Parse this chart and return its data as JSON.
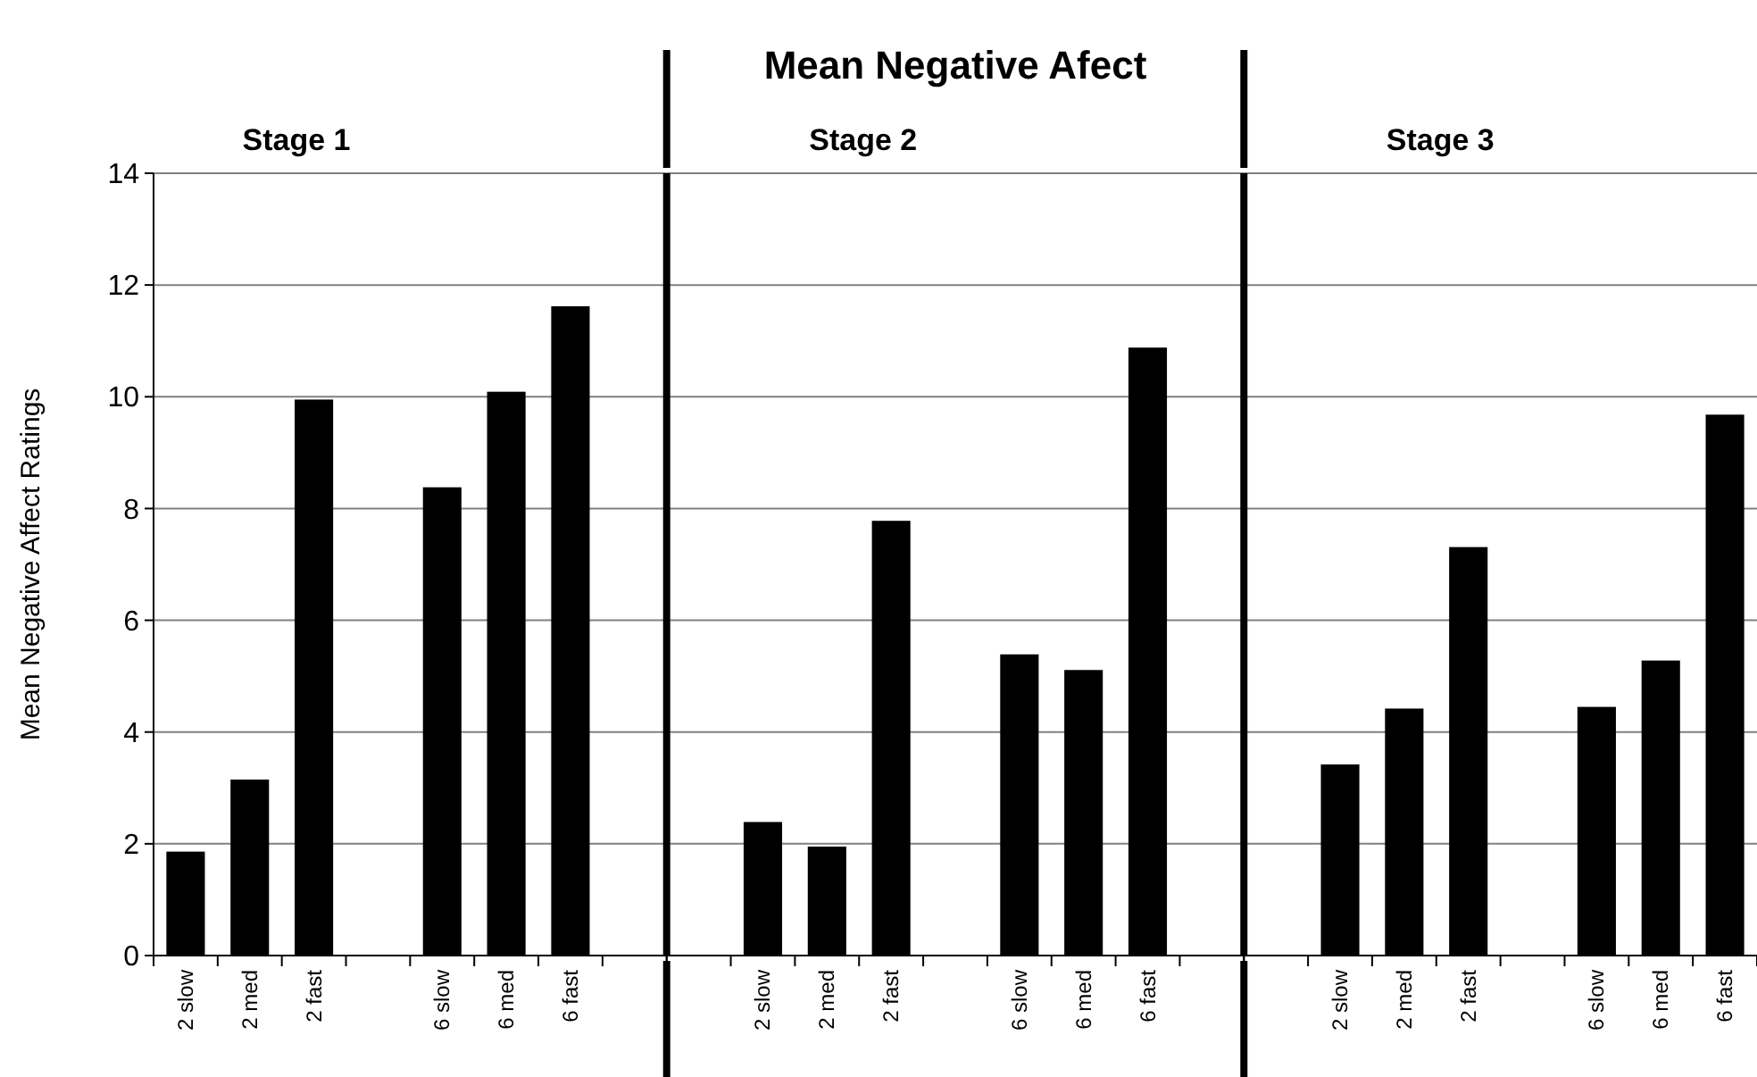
{
  "chart_data": [
    {
      "type": "bar",
      "subtitle": "Stage 1",
      "ylabel": "Mean Negative Affect Ratings",
      "categories": [
        "2 slow",
        "2 med",
        "2 fast",
        null,
        "6 slow",
        "6 med",
        "6 fast",
        null
      ],
      "values": [
        1.86,
        3.15,
        9.95,
        null,
        8.38,
        10.09,
        11.62,
        null
      ],
      "color": "#000000",
      "ylim": [
        0,
        14
      ],
      "yticks": [
        0,
        2,
        4,
        6,
        8,
        10,
        12,
        14
      ],
      "grid": "y"
    },
    {
      "type": "bar",
      "title": "Mean Negative Afect",
      "subtitle": "Stage 2",
      "categories": [
        null,
        "2 slow",
        "2 med",
        "2 fast",
        null,
        "6 slow",
        "6 med",
        "6 fast",
        null
      ],
      "values": [
        null,
        2.39,
        1.95,
        7.78,
        null,
        5.39,
        5.11,
        10.88,
        null
      ],
      "color": "#000000",
      "ylim": [
        0,
        14
      ],
      "yticks": [
        0,
        2,
        4,
        6,
        8,
        10,
        12,
        14
      ],
      "grid": "y",
      "tick_labels": "x"
    },
    {
      "type": "bar",
      "subtitle": "Stage 3",
      "categories": [
        null,
        "2 slow",
        "2 med",
        "2 fast",
        null,
        "6 slow",
        "6 med",
        "6 fast"
      ],
      "values": [
        null,
        3.42,
        4.42,
        7.31,
        null,
        4.45,
        5.28,
        9.68
      ],
      "color": "#000000",
      "ylim": [
        0,
        14
      ],
      "yticks": [
        0,
        2,
        4,
        6,
        8,
        10,
        12,
        14
      ],
      "grid": "y",
      "tick_labels": "x"
    }
  ]
}
